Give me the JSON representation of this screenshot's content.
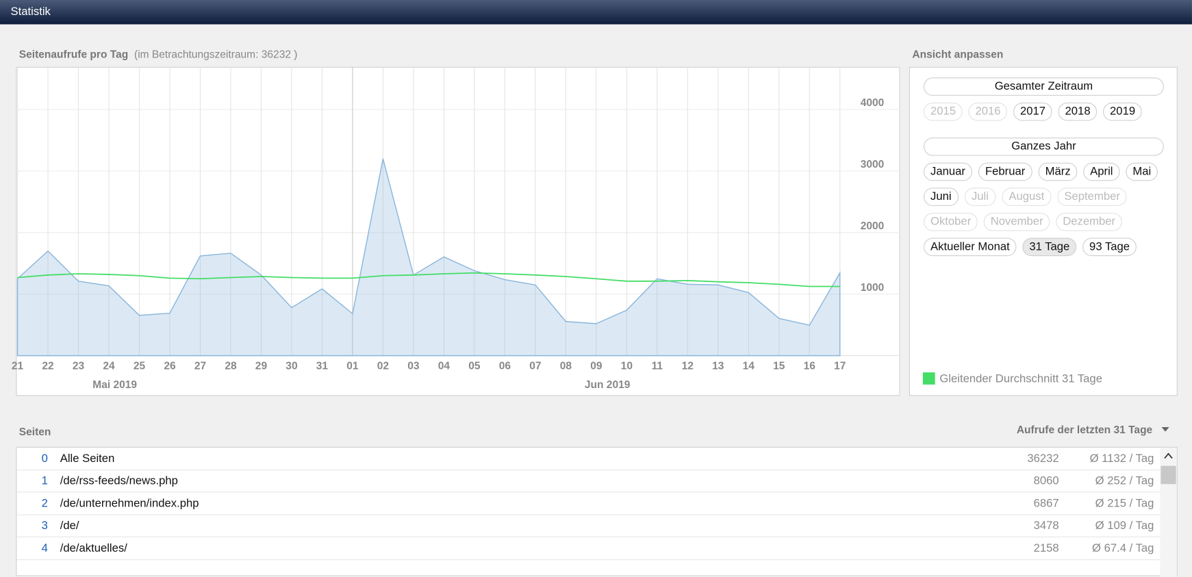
{
  "header": {
    "title": "Statistik"
  },
  "chart_data": {
    "type": "area",
    "title": "Seitenaufrufe pro Tag",
    "subtitle": "(im Betrachtungszeitraum: 36232 )",
    "categories": [
      "21",
      "22",
      "23",
      "24",
      "25",
      "26",
      "27",
      "28",
      "29",
      "30",
      "31",
      "01",
      "02",
      "03",
      "04",
      "05",
      "06",
      "07",
      "08",
      "09",
      "10",
      "11",
      "12",
      "13",
      "14",
      "15",
      "16",
      "17"
    ],
    "x_group_labels": [
      "Mai 2019",
      "Jun 2019"
    ],
    "series": [
      {
        "color": "#8ab6dc",
        "values": [
          1250,
          1700,
          1210,
          1135,
          655,
          690,
          1620,
          1665,
          1310,
          780,
          1085,
          680,
          3200,
          1310,
          1605,
          1380,
          1235,
          1150,
          555,
          520,
          740,
          1250,
          1160,
          1150,
          1025,
          605,
          495,
          1345
        ]
      },
      {
        "name": "Gleitender Durchschnitt 31 Tage",
        "color": "#44dd66",
        "values": [
          1270,
          1310,
          1330,
          1320,
          1300,
          1260,
          1250,
          1270,
          1285,
          1270,
          1260,
          1260,
          1300,
          1310,
          1330,
          1345,
          1330,
          1310,
          1285,
          1250,
          1210,
          1210,
          1220,
          1200,
          1185,
          1160,
          1125,
          1125
        ]
      }
    ],
    "ylim": [
      0,
      4680
    ],
    "yticks": [
      1000,
      2000,
      3000,
      4000
    ],
    "grid": true
  },
  "sidebar": {
    "title": "Ansicht anpassen",
    "all_time": "Gesamter Zeitraum",
    "years": [
      {
        "label": "2015",
        "enabled": false
      },
      {
        "label": "2016",
        "enabled": false
      },
      {
        "label": "2017",
        "enabled": true
      },
      {
        "label": "2018",
        "enabled": true
      },
      {
        "label": "2019",
        "enabled": true
      }
    ],
    "whole_year": "Ganzes Jahr",
    "months": [
      [
        {
          "label": "Januar",
          "enabled": true
        },
        {
          "label": "Februar",
          "enabled": true
        },
        {
          "label": "März",
          "enabled": true
        },
        {
          "label": "April",
          "enabled": true
        },
        {
          "label": "Mai",
          "enabled": true
        }
      ],
      [
        {
          "label": "Juni",
          "enabled": true
        },
        {
          "label": "Juli",
          "enabled": false
        },
        {
          "label": "August",
          "enabled": false
        },
        {
          "label": "September",
          "enabled": false
        }
      ],
      [
        {
          "label": "Oktober",
          "enabled": false
        },
        {
          "label": "November",
          "enabled": false
        },
        {
          "label": "Dezember",
          "enabled": false
        }
      ]
    ],
    "ranges": [
      {
        "label": "Aktueller Monat",
        "enabled": true
      },
      {
        "label": "31 Tage",
        "enabled": true,
        "selected": true
      },
      {
        "label": "93 Tage",
        "enabled": true
      }
    ]
  },
  "table": {
    "title": "Seiten",
    "sort_label": "Aufrufe der letzten 31 Tage",
    "rows": [
      [
        0,
        "Alle Seiten",
        36232,
        "Ø 1132 / Tag"
      ],
      [
        1,
        "/de/rss-feeds/news.php",
        8060,
        "Ø 252 / Tag"
      ],
      [
        2,
        "/de/unternehmen/index.php",
        6867,
        "Ø 215 / Tag"
      ],
      [
        3,
        "/de/",
        3478,
        "Ø 109 / Tag"
      ],
      [
        4,
        "/de/aktuelles/",
        2158,
        "Ø 67.4 / Tag"
      ]
    ]
  }
}
